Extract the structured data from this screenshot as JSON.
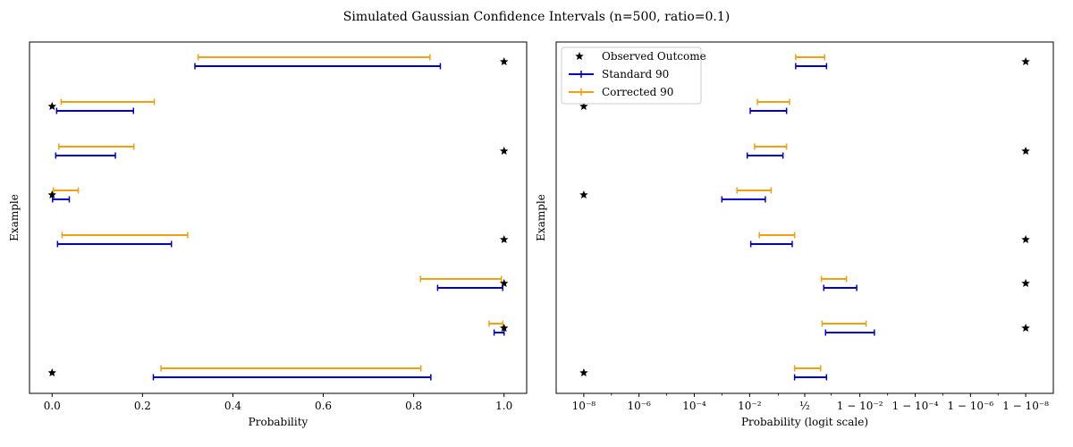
{
  "title": "Simulated Gaussian Confidence Intervals (n=500, ratio=0.1)",
  "colors": {
    "standard": "#0000cc",
    "corrected": "#f2a010",
    "observed": "#000000"
  },
  "legend": {
    "placement": "upper-left",
    "observed": "Observed Outcome",
    "standard": "Standard 90",
    "corrected": "Corrected 90"
  },
  "chart_data": [
    {
      "type": "errorbar",
      "xlabel": "Probability",
      "ylabel": "Example",
      "xscale": "linear",
      "xlim": [
        -0.05,
        1.05
      ],
      "xticks": [
        0.0,
        0.2,
        0.4,
        0.6,
        0.8,
        1.0
      ],
      "xticklabels": [
        "0.0",
        "0.2",
        "0.4",
        "0.6",
        "0.8",
        "1.0"
      ],
      "examples": [
        {
          "observed": 0,
          "standard": [
            0.224,
            0.838
          ],
          "corrected": [
            0.241,
            0.816
          ]
        },
        {
          "observed": 1,
          "standard": [
            0.978,
            1.0
          ],
          "corrected": [
            0.967,
            0.997
          ]
        },
        {
          "observed": 1,
          "standard": [
            0.853,
            0.997
          ],
          "corrected": [
            0.815,
            0.994
          ]
        },
        {
          "observed": 1,
          "standard": [
            0.012,
            0.264
          ],
          "corrected": [
            0.022,
            0.3
          ]
        },
        {
          "observed": 0,
          "standard": [
            0.001,
            0.038
          ],
          "corrected": [
            0.003,
            0.058
          ]
        },
        {
          "observed": 1,
          "standard": [
            0.008,
            0.14
          ],
          "corrected": [
            0.015,
            0.181
          ]
        },
        {
          "observed": 0,
          "standard": [
            0.01,
            0.18
          ],
          "corrected": [
            0.02,
            0.226
          ]
        },
        {
          "observed": 1,
          "standard": [
            0.316,
            0.859
          ],
          "corrected": [
            0.323,
            0.836
          ]
        }
      ]
    },
    {
      "type": "errorbar",
      "xlabel": "Probability (logit scale)",
      "ylabel": "Example",
      "xscale": "logit",
      "xlim": [
        1e-09,
        0.999999999
      ],
      "xticks": [
        1e-08,
        1e-06,
        0.0001,
        0.01,
        0.5,
        0.99,
        0.9999,
        0.999999,
        0.99999999
      ],
      "xticklabels": [
        "10⁻⁸",
        "10⁻⁶",
        "10⁻⁴",
        "10⁻²",
        "½",
        "1 − 10⁻²",
        "1 − 10⁻⁴",
        "1 − 10⁻⁶",
        "1 − 10⁻⁸"
      ],
      "examples": [
        {
          "observed": 1e-08,
          "standard": [
            0.3,
            0.86
          ],
          "corrected": [
            0.3,
            0.79
          ]
        },
        {
          "observed": 0.99999999,
          "standard": [
            0.85,
            0.997
          ],
          "corrected": [
            0.81,
            0.994
          ]
        },
        {
          "observed": 0.99999999,
          "standard": [
            0.83,
            0.987
          ],
          "corrected": [
            0.8,
            0.97
          ]
        },
        {
          "observed": 0.99999999,
          "standard": [
            0.011,
            0.26
          ],
          "corrected": [
            0.022,
            0.3
          ]
        },
        {
          "observed": 1e-08,
          "standard": [
            0.001,
            0.036
          ],
          "corrected": [
            0.0035,
            0.057
          ]
        },
        {
          "observed": 0.99999999,
          "standard": [
            0.0082,
            0.14
          ],
          "corrected": [
            0.015,
            0.18
          ]
        },
        {
          "observed": 1e-08,
          "standard": [
            0.0105,
            0.18
          ],
          "corrected": [
            0.019,
            0.22
          ]
        },
        {
          "observed": 0.99999999,
          "standard": [
            0.32,
            0.86
          ],
          "corrected": [
            0.32,
            0.84
          ]
        }
      ]
    }
  ]
}
